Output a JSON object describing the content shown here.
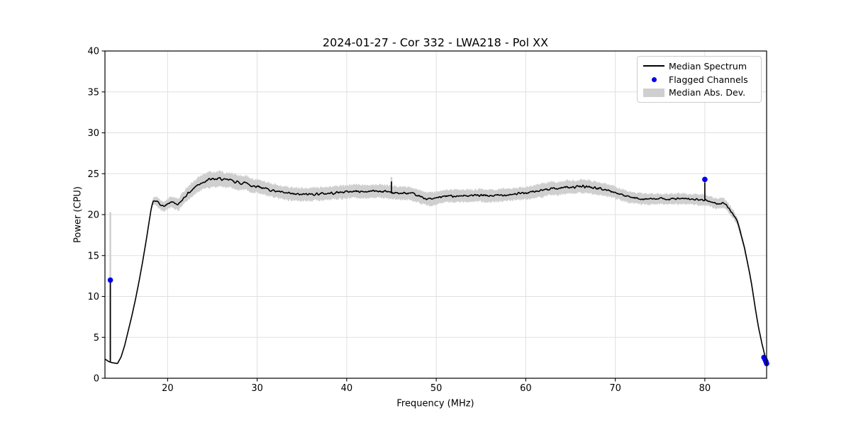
{
  "chart_data": {
    "type": "line",
    "title": "2024-01-27 - Cor 332 - LWA218 - Pol XX",
    "xlabel": "Frequency (MHz)",
    "ylabel": "Power (CPU)",
    "xlim": [
      13.0,
      86.9
    ],
    "ylim": [
      0,
      40
    ],
    "xticks": [
      20,
      30,
      40,
      50,
      60,
      70,
      80
    ],
    "yticks": [
      0,
      5,
      10,
      15,
      20,
      25,
      30,
      35,
      40
    ],
    "grid": true,
    "legend": {
      "position": "upper right",
      "items": [
        {
          "label": "Median Spectrum",
          "type": "line"
        },
        {
          "label": "Flagged Channels",
          "type": "dot"
        },
        {
          "label": "Median Abs. Dev.",
          "type": "patch"
        }
      ]
    },
    "colors": {
      "line": "#000000",
      "flagged": "#0000ee",
      "band": "#cfcfcf",
      "grid": "#e0e0e0",
      "frame": "#000000"
    },
    "series": {
      "median_spectrum": {
        "note": "points are [freq_MHz, power_CPU, median_abs_dev]",
        "points": [
          [
            13.0,
            2.35,
            0
          ],
          [
            13.4,
            2.05,
            0
          ],
          [
            13.8,
            1.9,
            0
          ],
          [
            14.4,
            1.8,
            0
          ],
          [
            14.8,
            2.6,
            0
          ],
          [
            15.2,
            4.0,
            0
          ],
          [
            15.6,
            5.8,
            0
          ],
          [
            16.0,
            7.6,
            0
          ],
          [
            16.4,
            9.6,
            0
          ],
          [
            16.8,
            11.8,
            0
          ],
          [
            17.2,
            14.2,
            0
          ],
          [
            17.6,
            16.8,
            0
          ],
          [
            18.0,
            19.6,
            0.15
          ],
          [
            18.2,
            20.9,
            0.3
          ],
          [
            18.4,
            21.7,
            0.45
          ],
          [
            18.8,
            21.6,
            0.55
          ],
          [
            19.2,
            21.2,
            0.6
          ],
          [
            19.6,
            21.0,
            0.6
          ],
          [
            20.0,
            21.3,
            0.65
          ],
          [
            20.4,
            21.6,
            0.65
          ],
          [
            20.8,
            21.4,
            0.7
          ],
          [
            21.2,
            21.2,
            0.7
          ],
          [
            21.6,
            21.8,
            0.75
          ],
          [
            22.0,
            22.3,
            0.8
          ],
          [
            22.4,
            22.7,
            0.85
          ],
          [
            22.8,
            23.1,
            0.85
          ],
          [
            23.2,
            23.5,
            0.9
          ],
          [
            23.6,
            23.8,
            0.9
          ],
          [
            24.0,
            24.0,
            0.9
          ],
          [
            24.4,
            24.25,
            0.95
          ],
          [
            25.0,
            24.3,
            0.95
          ],
          [
            25.6,
            24.35,
            0.95
          ],
          [
            26.0,
            24.4,
            0.95
          ],
          [
            26.4,
            24.2,
            0.9
          ],
          [
            27.0,
            24.25,
            0.9
          ],
          [
            27.6,
            24.0,
            0.9
          ],
          [
            28.2,
            23.85,
            0.85
          ],
          [
            28.8,
            23.9,
            0.85
          ],
          [
            29.4,
            23.5,
            0.85
          ],
          [
            30.0,
            23.5,
            0.8
          ],
          [
            31.0,
            23.15,
            0.8
          ],
          [
            32.0,
            22.9,
            0.8
          ],
          [
            33.0,
            22.65,
            0.8
          ],
          [
            34.0,
            22.5,
            0.8
          ],
          [
            35.0,
            22.45,
            0.8
          ],
          [
            36.0,
            22.5,
            0.8
          ],
          [
            37.0,
            22.55,
            0.8
          ],
          [
            38.0,
            22.6,
            0.8
          ],
          [
            39.0,
            22.7,
            0.8
          ],
          [
            40.0,
            22.8,
            0.8
          ],
          [
            41.0,
            22.85,
            0.8
          ],
          [
            42.0,
            22.8,
            0.8
          ],
          [
            43.0,
            22.9,
            0.8
          ],
          [
            44.0,
            22.85,
            0.8
          ],
          [
            44.8,
            22.8,
            0.8
          ],
          [
            45.3,
            22.65,
            0.8
          ],
          [
            46.0,
            22.6,
            0.8
          ],
          [
            47.0,
            22.6,
            0.8
          ],
          [
            47.7,
            22.4,
            0.8
          ],
          [
            48.4,
            22.1,
            0.8
          ],
          [
            49.0,
            21.95,
            0.8
          ],
          [
            49.6,
            21.9,
            0.8
          ],
          [
            50.2,
            22.1,
            0.75
          ],
          [
            51.0,
            22.25,
            0.75
          ],
          [
            52.0,
            22.3,
            0.75
          ],
          [
            53.0,
            22.3,
            0.75
          ],
          [
            54.0,
            22.3,
            0.75
          ],
          [
            55.0,
            22.35,
            0.75
          ],
          [
            56.0,
            22.3,
            0.75
          ],
          [
            57.0,
            22.35,
            0.75
          ],
          [
            58.0,
            22.45,
            0.75
          ],
          [
            59.0,
            22.55,
            0.75
          ],
          [
            60.0,
            22.65,
            0.75
          ],
          [
            61.0,
            22.8,
            0.8
          ],
          [
            62.0,
            23.0,
            0.8
          ],
          [
            62.8,
            23.25,
            0.8
          ],
          [
            63.4,
            23.15,
            0.8
          ],
          [
            64.0,
            23.3,
            0.8
          ],
          [
            64.8,
            23.4,
            0.8
          ],
          [
            65.6,
            23.35,
            0.8
          ],
          [
            66.2,
            23.45,
            0.8
          ],
          [
            67.0,
            23.4,
            0.8
          ],
          [
            67.8,
            23.25,
            0.8
          ],
          [
            68.6,
            23.1,
            0.75
          ],
          [
            69.4,
            22.9,
            0.75
          ],
          [
            70.0,
            22.7,
            0.7
          ],
          [
            70.6,
            22.45,
            0.7
          ],
          [
            71.2,
            22.25,
            0.7
          ],
          [
            72.0,
            22.05,
            0.65
          ],
          [
            72.8,
            21.95,
            0.65
          ],
          [
            74.0,
            21.9,
            0.65
          ],
          [
            75.0,
            21.95,
            0.65
          ],
          [
            76.0,
            21.9,
            0.65
          ],
          [
            77.0,
            21.95,
            0.65
          ],
          [
            78.0,
            21.9,
            0.65
          ],
          [
            79.0,
            21.85,
            0.65
          ],
          [
            79.8,
            21.8,
            0.65
          ],
          [
            80.4,
            21.65,
            0.6
          ],
          [
            81.0,
            21.45,
            0.6
          ],
          [
            81.6,
            21.3,
            0.6
          ],
          [
            82.0,
            21.5,
            0.6
          ],
          [
            82.4,
            21.15,
            0.55
          ],
          [
            82.8,
            20.6,
            0.55
          ],
          [
            83.2,
            20.0,
            0.5
          ],
          [
            83.6,
            19.2,
            0.5
          ],
          [
            84.0,
            17.8,
            0.45
          ],
          [
            84.4,
            16.0,
            0.45
          ],
          [
            84.8,
            14.0,
            0.4
          ],
          [
            85.2,
            11.6,
            0.35
          ],
          [
            85.6,
            8.8,
            0.3
          ],
          [
            86.0,
            6.2,
            0.2
          ],
          [
            86.35,
            4.4,
            0.15
          ],
          [
            86.65,
            3.0,
            0.1
          ],
          [
            86.9,
            2.1,
            0.05
          ]
        ]
      },
      "spikes": {
        "note": "narrow RFI spikes [freq_MHz, base, peak, band_top]",
        "points": [
          [
            13.6,
            1.9,
            11.7,
            20.3
          ],
          [
            45.0,
            22.65,
            24.05,
            24.6
          ],
          [
            80.0,
            21.8,
            23.95,
            22.6
          ]
        ]
      },
      "flagged_channels": {
        "note": "blue markers [freq_MHz, power_CPU]",
        "points": [
          [
            13.6,
            12.0
          ],
          [
            80.0,
            24.3
          ],
          [
            86.6,
            2.55
          ],
          [
            86.72,
            2.3
          ],
          [
            86.82,
            2.05
          ],
          [
            86.9,
            1.8
          ]
        ]
      }
    },
    "noise": {
      "seed": 42,
      "line_factor": 0.26,
      "band_edge": 0.15,
      "samples": 1100
    }
  }
}
